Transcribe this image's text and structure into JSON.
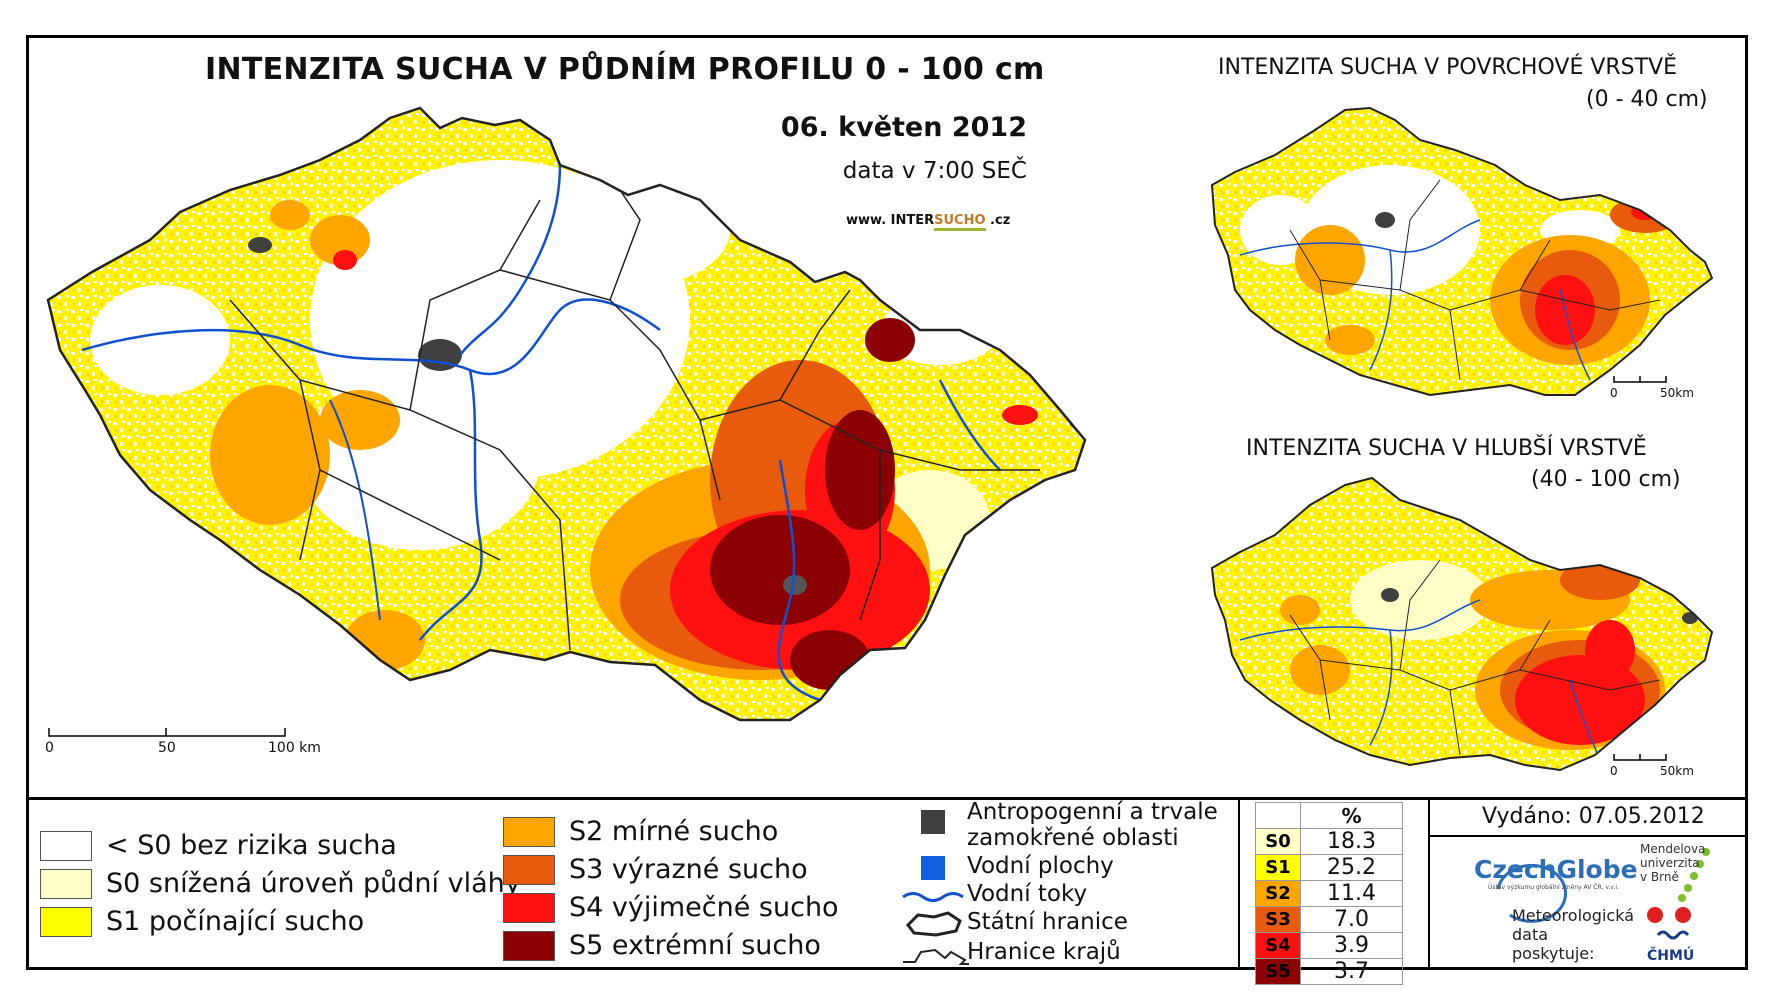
{
  "map": {
    "title": "INTENZITA SUCHA V PŮDNÍM PROFILU 0 - 100 cm",
    "date": "06. květen 2012",
    "data_time": "data v 7:00 SEČ",
    "site_prefix": "www. INTER",
    "site_mid": "SUCHO",
    "site_suffix": " .cz",
    "scale_labels": [
      "0",
      "50",
      "100 km"
    ]
  },
  "insets": [
    {
      "title": "INTENZITA SUCHA V POVRCHOVÉ VRSTVĚ",
      "subtitle": "(0 - 40 cm)",
      "scale_labels": [
        "0",
        "50km"
      ]
    },
    {
      "title": "INTENZITA SUCHA V HLUBŠÍ VRSTVĚ",
      "subtitle": "(40 - 100 cm)",
      "scale_labels": [
        "0",
        "50km"
      ]
    }
  ],
  "legend": {
    "classes": [
      {
        "label": "< S0 bez rizika sucha",
        "color": "#ffffff"
      },
      {
        "label": "S0 snížená úroveň půdní vláhy",
        "color": "#ffffc8"
      },
      {
        "label": "S1 počínající sucho",
        "color": "#ffff00"
      },
      {
        "label": "S2 mírné sucho",
        "color": "#ffa500"
      },
      {
        "label": "S3 výrazné sucho",
        "color": "#e85a0c"
      },
      {
        "label": "S4 výjimečné sucho",
        "color": "#ff1010"
      },
      {
        "label": "S5 extrémní sucho",
        "color": "#8b0000"
      }
    ],
    "other": [
      {
        "label": "Antropogenní a trvale",
        "label2": "zamokřené oblasti",
        "icon": "dark-square-icon",
        "color": "#404040"
      },
      {
        "label": "Vodní plochy",
        "icon": "blue-square-icon",
        "color": "#1060e0"
      },
      {
        "label": "Vodní toky",
        "icon": "river-line-icon",
        "color": "#1050d0"
      },
      {
        "label": "Státní hranice",
        "icon": "state-border-icon"
      },
      {
        "label": "Hranice krajů",
        "icon": "region-border-icon"
      }
    ]
  },
  "stats": {
    "header": "%",
    "rows": [
      {
        "class": "S0",
        "value": "18.3",
        "bg": "#ffffc8",
        "fg": "#000"
      },
      {
        "class": "S1",
        "value": "25.2",
        "bg": "#ffff00",
        "fg": "#000"
      },
      {
        "class": "S2",
        "value": "11.4",
        "bg": "#ffa500",
        "fg": "#000"
      },
      {
        "class": "S3",
        "value": "7.0",
        "bg": "#e85a0c",
        "fg": "#000"
      },
      {
        "class": "S4",
        "value": "3.9",
        "bg": "#ff1010",
        "fg": "#000"
      },
      {
        "class": "S5",
        "value": "3.7",
        "bg": "#8b0000",
        "fg": "#000"
      }
    ]
  },
  "credits": {
    "issued": "Vydáno: 07.05.2012",
    "czechglobe": "CzechGlobe",
    "czechglobe_sub": "Ústav výzkumu globální změny AV ČR, v.v.i.",
    "mendel": [
      "Mendelova",
      "univerzita",
      "v Brně"
    ],
    "meteo": [
      "Meteorologická",
      "data",
      "poskytuje:"
    ],
    "chmu": "ČHMÚ"
  }
}
